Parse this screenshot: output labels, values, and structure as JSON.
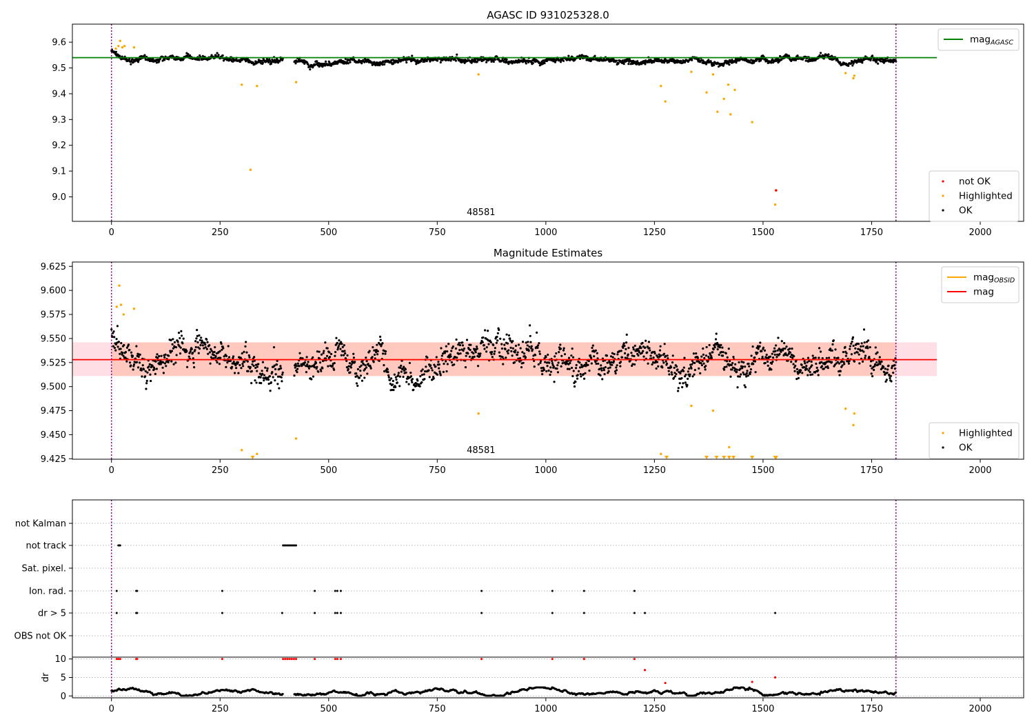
{
  "chart_data": [
    {
      "type": "scatter",
      "title": "AGASC ID 931025328.0",
      "xlim": [
        -90,
        2100
      ],
      "ylim": [
        8.905,
        9.67
      ],
      "xticks": [
        0,
        250,
        500,
        750,
        1000,
        1250,
        1500,
        1750,
        2000
      ],
      "yticks": [
        9.0,
        9.1,
        9.2,
        9.3,
        9.4,
        9.5,
        9.6
      ],
      "obsid_label": "48581",
      "obsid_boundaries": [
        0,
        1806
      ],
      "mag_agasc": 9.54,
      "mag_agasc_xrange": [
        -90,
        1900
      ],
      "legend_lines": [
        {
          "label": "mag",
          "sub": "AGASC",
          "color": "#008000"
        }
      ],
      "legend_points": [
        {
          "label": "not OK",
          "color": "#ff0000"
        },
        {
          "label": "Highlighted",
          "color": "#ffa500"
        },
        {
          "label": "OK",
          "color": "#000000"
        }
      ],
      "ok_series": {
        "n": 1700,
        "x_range": [
          0,
          1806
        ],
        "gaps": [
          [
            395,
            420
          ]
        ],
        "base": 9.53,
        "spread": 0.012
      },
      "highlighted": [
        [
          10,
          9.575
        ],
        [
          16,
          9.585
        ],
        [
          20,
          9.605
        ],
        [
          25,
          9.58
        ],
        [
          30,
          9.585
        ],
        [
          52,
          9.58
        ],
        [
          300,
          9.435
        ],
        [
          320,
          9.105
        ],
        [
          335,
          9.43
        ],
        [
          425,
          9.445
        ],
        [
          845,
          9.475
        ],
        [
          1265,
          9.43
        ],
        [
          1275,
          9.37
        ],
        [
          1335,
          9.485
        ],
        [
          1370,
          9.405
        ],
        [
          1385,
          9.475
        ],
        [
          1395,
          9.33
        ],
        [
          1410,
          9.38
        ],
        [
          1420,
          9.435
        ],
        [
          1425,
          9.32
        ],
        [
          1435,
          9.415
        ],
        [
          1475,
          9.29
        ],
        [
          1528,
          8.97
        ],
        [
          1690,
          9.48
        ],
        [
          1708,
          9.46
        ],
        [
          1710,
          9.47
        ]
      ],
      "not_ok": [
        [
          1530,
          9.025
        ]
      ]
    },
    {
      "type": "scatter",
      "title": "Magnitude Estimates",
      "xlim": [
        -90,
        2100
      ],
      "ylim": [
        9.4245,
        9.6295
      ],
      "xticks": [
        0,
        250,
        500,
        750,
        1000,
        1250,
        1500,
        1750,
        2000
      ],
      "yticks": [
        9.425,
        9.45,
        9.475,
        9.5,
        9.525,
        9.55,
        9.575,
        9.6,
        9.625
      ],
      "obsid_label": "48581",
      "obsid_boundaries": [
        0,
        1806
      ],
      "mag": 9.528,
      "mag_band": [
        9.511,
        9.546
      ],
      "mag_obsid": 9.528,
      "mag_obsid_band": [
        9.511,
        9.546
      ],
      "line_xrange": [
        -90,
        1900
      ],
      "legend_lines": [
        {
          "label": "mag",
          "sub": "OBSID",
          "color": "#ffa500"
        },
        {
          "label": "mag",
          "sub": "",
          "color": "#ff0000"
        }
      ],
      "legend_points": [
        {
          "label": "Highlighted",
          "color": "#ffa500"
        },
        {
          "label": "OK",
          "color": "#000000"
        }
      ],
      "ok_series": {
        "n": 1700,
        "x_range": [
          0,
          1806
        ],
        "gaps": [
          [
            395,
            420
          ]
        ],
        "base": 9.528,
        "spread": 0.018
      },
      "highlighted": [
        [
          12,
          9.583
        ],
        [
          18,
          9.605
        ],
        [
          22,
          9.585
        ],
        [
          28,
          9.575
        ],
        [
          52,
          9.581
        ],
        [
          300,
          9.434
        ],
        [
          335,
          9.43
        ],
        [
          425,
          9.446
        ],
        [
          845,
          9.472
        ],
        [
          1265,
          9.43
        ],
        [
          1335,
          9.48
        ],
        [
          1385,
          9.475
        ],
        [
          1422,
          9.437
        ],
        [
          1690,
          9.477
        ],
        [
          1708,
          9.46
        ],
        [
          1710,
          9.472
        ]
      ],
      "clipped_markers": [
        325,
        1278,
        1370,
        1393,
        1410,
        1422,
        1432,
        1475,
        1528,
        1530
      ]
    },
    {
      "type": "scatter",
      "title": "",
      "xlim": [
        -90,
        2100
      ],
      "xticks": [
        0,
        250,
        500,
        750,
        1000,
        1250,
        1500,
        1750,
        2000
      ],
      "obsid_boundaries": [
        0,
        1806
      ],
      "flag_labels": [
        "not Kalman",
        "not track",
        "Sat. pixel.",
        "Ion. rad.",
        "dr > 5",
        "OBS not OK"
      ],
      "flags": {
        "not Kalman": [],
        "not track": [
          16,
          18,
          20,
          395,
          398,
          401,
          404,
          407,
          410,
          413,
          416,
          419,
          422,
          425
        ],
        "Sat. pixel.": [],
        "Ion. rad.": [
          12,
          57,
          59,
          255,
          468,
          515,
          520,
          528,
          852,
          1015,
          1088,
          1204
        ],
        "dr > 5": [
          12,
          57,
          59,
          255,
          393,
          468,
          515,
          520,
          528,
          852,
          1015,
          1088,
          1204,
          1228,
          1528
        ],
        "OBS not OK": []
      },
      "dr_ylabel": "dr",
      "dr_ylim": [
        -0.5,
        10.5
      ],
      "dr_yticks": [
        0,
        5,
        10
      ],
      "dr_high": [
        [
          12,
          10
        ],
        [
          16,
          10
        ],
        [
          20,
          10
        ],
        [
          57,
          10
        ],
        [
          59,
          10
        ],
        [
          255,
          10
        ],
        [
          395,
          10
        ],
        [
          400,
          10
        ],
        [
          405,
          10
        ],
        [
          410,
          10
        ],
        [
          415,
          10
        ],
        [
          420,
          10
        ],
        [
          425,
          10
        ],
        [
          468,
          10
        ],
        [
          515,
          10
        ],
        [
          520,
          10
        ],
        [
          528,
          10
        ],
        [
          852,
          10
        ],
        [
          1015,
          10
        ],
        [
          1088,
          10
        ],
        [
          1204,
          10
        ],
        [
          1228,
          7
        ],
        [
          1275,
          3.5
        ],
        [
          1475,
          3.8
        ],
        [
          1528,
          5
        ]
      ]
    }
  ]
}
